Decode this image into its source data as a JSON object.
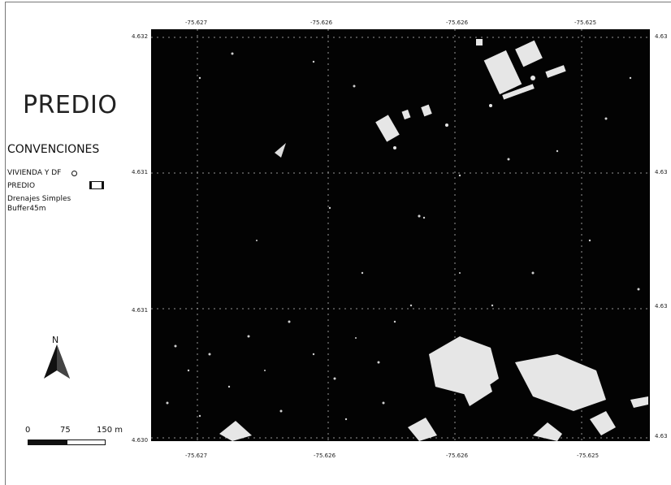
{
  "map": {
    "title": "PREDIO",
    "legend": {
      "heading": "CONVENCIONES",
      "items": [
        {
          "label": "VIVIENDA Y DF",
          "symbol": "point-circle-icon"
        },
        {
          "label": "PREDIO",
          "symbol": "polygon-outline-icon"
        },
        {
          "label": "Drenajes Simples",
          "symbol": ""
        },
        {
          "label": "Buffer45m",
          "symbol": ""
        }
      ]
    },
    "north_arrow": {
      "label": "N",
      "icon": "north-arrow-icon"
    },
    "scale_bar": {
      "labels": [
        "0",
        "75",
        "150 m"
      ]
    },
    "grid": {
      "top": [
        "-75.627",
        "-75.626",
        "-75.626",
        "-75.625"
      ],
      "bottom": [
        "-75.627",
        "-75.626",
        "-75.626",
        "-75.625"
      ],
      "left": [
        "4.632",
        "4.631",
        "4.631",
        "4.630"
      ],
      "right": [
        "4.63",
        "4.63",
        "4.63",
        "4.63"
      ]
    },
    "colors": {
      "frame": "#030303",
      "grid": "#bbbbbb",
      "imagery_light": "#e6e6e6"
    }
  }
}
